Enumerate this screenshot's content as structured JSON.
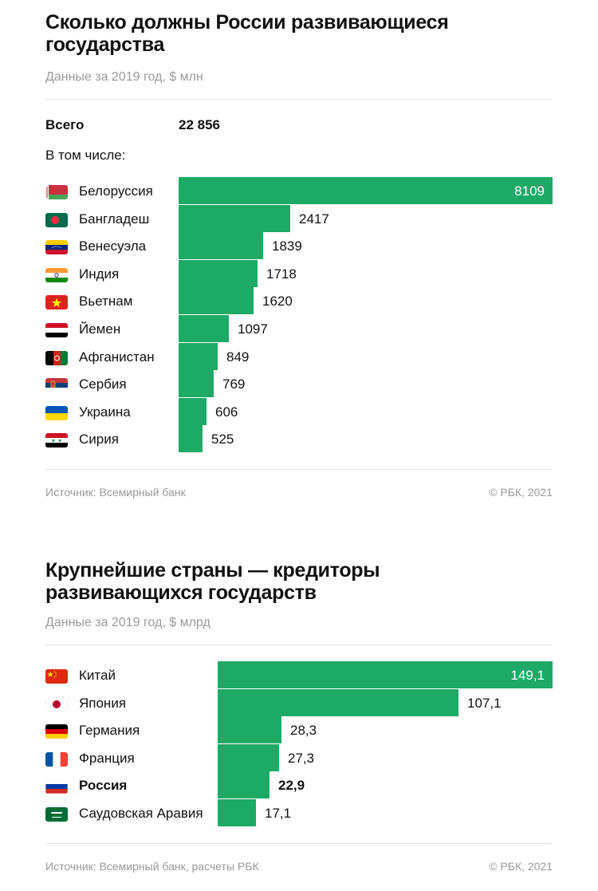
{
  "chart1": {
    "title": "Сколько должны России развивающиеся государства",
    "subtitle": "Данные за 2019 год, $ млн",
    "total_label": "Всего",
    "total_value": "22 856",
    "including_label": "В том числе:",
    "source": "Источник: Всемирный банк",
    "credit": "© РБК, 2021"
  },
  "chart2": {
    "title": "Крупнейшие страны — кредиторы развивающихся государств",
    "subtitle": "Данные за 2019 год, $ млрд",
    "source": "Источник: Всемирный банк, расчеты РБК",
    "credit": "© РБК, 2021"
  },
  "chart_data": [
    {
      "type": "bar",
      "orientation": "horizontal",
      "title": "Сколько должны России развивающиеся государства",
      "subtitle": "Данные за 2019 год, $ млн",
      "unit": "$ млн",
      "categories": [
        "Белоруссия",
        "Бангладеш",
        "Венесуэла",
        "Индия",
        "Вьетнам",
        "Йемен",
        "Афганистан",
        "Сербия",
        "Украина",
        "Сирия"
      ],
      "values": [
        8109,
        2417,
        1839,
        1718,
        1620,
        1097,
        849,
        769,
        606,
        525
      ],
      "labels": [
        "8109",
        "2417",
        "1839",
        "1718",
        "1620",
        "1097",
        "849",
        "769",
        "606",
        "525"
      ],
      "flags": [
        "belarus-flag",
        "bangladesh-flag",
        "venezuela-flag",
        "india-flag",
        "vietnam-flag",
        "yemen-flag",
        "afghanistan-flag",
        "serbia-flag",
        "ukraine-flag",
        "syria-flag"
      ],
      "bar_color": "#1daa66",
      "grid": false
    },
    {
      "type": "bar",
      "orientation": "horizontal",
      "title": "Крупнейшие страны — кредиторы развивающихся государств",
      "subtitle": "Данные за 2019 год, $ млрд",
      "unit": "$ млрд",
      "categories": [
        "Китай",
        "Япония",
        "Германия",
        "Франция",
        "Россия",
        "Саудовская Аравия"
      ],
      "values": [
        149.1,
        107.1,
        28.3,
        27.3,
        22.9,
        17.1
      ],
      "labels": [
        "149,1",
        "107,1",
        "28,3",
        "27,3",
        "22,9",
        "17,1"
      ],
      "highlight": "Россия",
      "flags": [
        "china-flag",
        "japan-flag",
        "germany-flag",
        "france-flag",
        "russia-flag",
        "saudi-arabia-flag"
      ],
      "bar_color": "#1daa66",
      "grid": false
    }
  ]
}
